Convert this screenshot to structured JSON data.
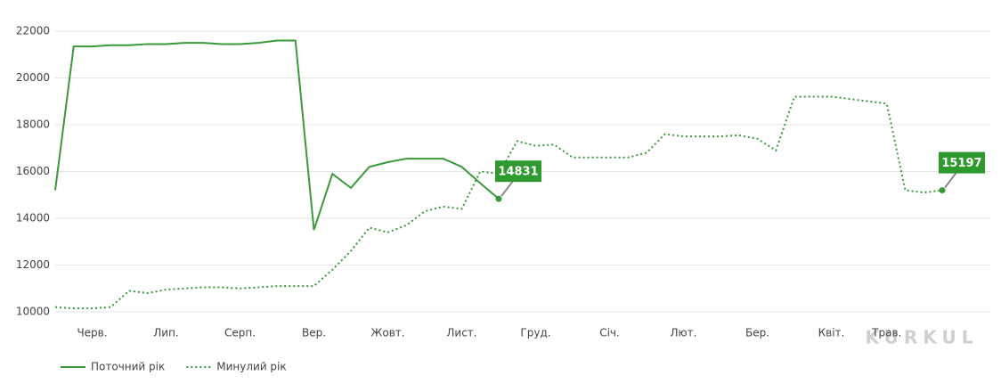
{
  "chart_data": {
    "type": "line",
    "categories": [
      null,
      null,
      "Черв.",
      null,
      null,
      null,
      "Лип.",
      null,
      null,
      null,
      "Серп.",
      null,
      null,
      null,
      "Вер.",
      null,
      null,
      null,
      "Жовт.",
      null,
      null,
      null,
      "Лист.",
      null,
      null,
      null,
      "Груд.",
      null,
      null,
      null,
      "Січ.",
      null,
      null,
      null,
      "Лют.",
      null,
      null,
      null,
      "Бер.",
      null,
      null,
      null,
      "Квіт.",
      null,
      null,
      "Трав.",
      null,
      null,
      null
    ],
    "series": [
      {
        "name": "Поточний рік",
        "color": "#3a9a3a",
        "dash": "solid",
        "values": [
          15200,
          21350,
          21350,
          21400,
          21400,
          21450,
          21450,
          21500,
          21500,
          21450,
          21450,
          21500,
          21600,
          21600,
          13500,
          15900,
          15300,
          16200,
          16400,
          16550,
          16550,
          16550,
          16200,
          15500,
          14831,
          null,
          null,
          null,
          null,
          null,
          null,
          null,
          null,
          null,
          null,
          null,
          null,
          null,
          null,
          null,
          null,
          null,
          null,
          null,
          null,
          null,
          null,
          null,
          null
        ]
      },
      {
        "name": "Минулий рік",
        "color": "#3a9a3a",
        "dash": "dotted",
        "values": [
          10200,
          10150,
          10150,
          10200,
          10900,
          10800,
          10950,
          11000,
          11050,
          11050,
          11000,
          11050,
          11100,
          11100,
          11100,
          11800,
          12600,
          13600,
          13400,
          13700,
          14300,
          14500,
          14400,
          16000,
          15900,
          17300,
          17100,
          17150,
          16600,
          16600,
          16600,
          16600,
          16800,
          17600,
          17500,
          17500,
          17500,
          17550,
          17400,
          16900,
          19200,
          19200,
          19200,
          19100,
          19000,
          18900,
          15200,
          15100,
          15197
        ]
      }
    ],
    "annotations": [
      {
        "series": 0,
        "index": 24
      },
      {
        "series": 1,
        "index": 48
      }
    ],
    "ylim": [
      10000,
      22000
    ],
    "yticks": [
      10000,
      12000,
      14000,
      16000,
      18000,
      20000,
      22000
    ],
    "grid": true,
    "legend": "bottom-left",
    "watermark": "KURKUL"
  }
}
